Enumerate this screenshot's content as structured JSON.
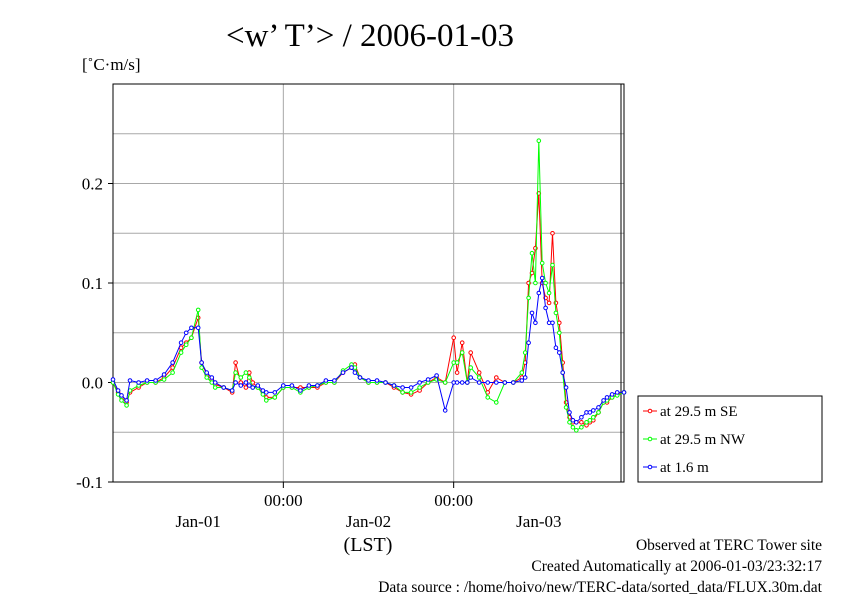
{
  "chart_data": {
    "type": "line",
    "title": "<w’ T’> / 2006-01-03",
    "ylabel": "[˚C·m/s]",
    "xlabel": "(LST)",
    "ylim": [
      -0.1,
      0.3
    ],
    "xlim": [
      0,
      3
    ],
    "grid": true,
    "legend_placement": "right",
    "y_ticks": [
      {
        "value": -0.1,
        "label": "-0.1"
      },
      {
        "value": 0.0,
        "label": "0.0"
      },
      {
        "value": 0.1,
        "label": "0.1"
      },
      {
        "value": 0.2,
        "label": "0.2"
      }
    ],
    "x_ticks": [
      {
        "value": 1.0,
        "label": "00:00"
      },
      {
        "value": 2.0,
        "label": "00:00"
      }
    ],
    "x_day_labels": [
      {
        "value": 0.5,
        "label": "Jan-01"
      },
      {
        "value": 1.5,
        "label": "Jan-02"
      },
      {
        "value": 2.5,
        "label": "Jan-03"
      }
    ],
    "series": [
      {
        "name": "at 29.5 m SE",
        "color": "#ff0000",
        "x": [
          0.0,
          0.03,
          0.05,
          0.08,
          0.1,
          0.15,
          0.2,
          0.25,
          0.3,
          0.35,
          0.4,
          0.43,
          0.46,
          0.5,
          0.52,
          0.55,
          0.58,
          0.6,
          0.65,
          0.7,
          0.72,
          0.75,
          0.78,
          0.8,
          0.82,
          0.85,
          0.88,
          0.9,
          0.95,
          1.0,
          1.05,
          1.1,
          1.15,
          1.2,
          1.25,
          1.3,
          1.35,
          1.4,
          1.42,
          1.45,
          1.5,
          1.55,
          1.6,
          1.65,
          1.7,
          1.75,
          1.8,
          1.85,
          1.9,
          1.95,
          2.0,
          2.02,
          2.05,
          2.08,
          2.1,
          2.15,
          2.2,
          2.25,
          2.3,
          2.35,
          2.4,
          2.42,
          2.44,
          2.46,
          2.48,
          2.5,
          2.52,
          2.54,
          2.56,
          2.58,
          2.6,
          2.62,
          2.64,
          2.66,
          2.68,
          2.7,
          2.72,
          2.75,
          2.78,
          2.8,
          2.82,
          2.85,
          2.88,
          2.9,
          2.93,
          2.96,
          3.0
        ],
        "values": [
          0.0,
          -0.01,
          -0.015,
          -0.02,
          -0.01,
          -0.005,
          0.0,
          0.0,
          0.005,
          0.015,
          0.035,
          0.04,
          0.045,
          0.065,
          0.02,
          0.008,
          0.003,
          -0.002,
          -0.005,
          -0.01,
          0.02,
          0.0,
          -0.005,
          0.01,
          0.0,
          -0.005,
          -0.01,
          -0.015,
          -0.015,
          -0.005,
          -0.005,
          -0.005,
          -0.005,
          -0.005,
          0.0,
          0.0,
          0.01,
          0.015,
          0.018,
          0.005,
          0.0,
          0.0,
          0.0,
          -0.005,
          -0.01,
          -0.012,
          -0.008,
          0.0,
          0.005,
          0.0,
          0.045,
          0.01,
          0.04,
          0.0,
          0.03,
          0.01,
          -0.01,
          0.005,
          0.0,
          0.0,
          0.005,
          0.02,
          0.1,
          0.11,
          0.135,
          0.19,
          0.1,
          0.085,
          0.08,
          0.15,
          0.08,
          0.06,
          0.02,
          -0.02,
          -0.035,
          -0.04,
          -0.04,
          -0.04,
          -0.043,
          -0.04,
          -0.038,
          -0.03,
          -0.02,
          -0.02,
          -0.015,
          -0.012,
          -0.01
        ]
      },
      {
        "name": "at 29.5 m NW",
        "color": "#00ff00",
        "x": [
          0.0,
          0.03,
          0.05,
          0.08,
          0.1,
          0.15,
          0.2,
          0.25,
          0.3,
          0.35,
          0.4,
          0.43,
          0.46,
          0.5,
          0.52,
          0.55,
          0.58,
          0.6,
          0.65,
          0.7,
          0.72,
          0.75,
          0.78,
          0.8,
          0.82,
          0.85,
          0.88,
          0.9,
          0.95,
          1.0,
          1.05,
          1.1,
          1.15,
          1.2,
          1.25,
          1.3,
          1.35,
          1.4,
          1.42,
          1.45,
          1.5,
          1.55,
          1.6,
          1.65,
          1.7,
          1.75,
          1.8,
          1.85,
          1.9,
          1.95,
          2.0,
          2.02,
          2.05,
          2.08,
          2.1,
          2.15,
          2.2,
          2.25,
          2.3,
          2.35,
          2.4,
          2.42,
          2.44,
          2.46,
          2.48,
          2.5,
          2.52,
          2.54,
          2.56,
          2.58,
          2.6,
          2.62,
          2.64,
          2.66,
          2.68,
          2.7,
          2.72,
          2.75,
          2.78,
          2.8,
          2.82,
          2.85,
          2.88,
          2.9,
          2.93,
          2.96,
          3.0
        ],
        "values": [
          0.0,
          -0.012,
          -0.018,
          -0.023,
          -0.008,
          -0.003,
          0.0,
          0.0,
          0.003,
          0.01,
          0.03,
          0.038,
          0.045,
          0.073,
          0.015,
          0.005,
          0.0,
          -0.005,
          -0.005,
          -0.008,
          0.01,
          0.005,
          0.01,
          0.005,
          -0.005,
          -0.005,
          -0.012,
          -0.018,
          -0.015,
          -0.005,
          -0.005,
          -0.01,
          -0.005,
          -0.003,
          0.0,
          0.0,
          0.012,
          0.018,
          0.015,
          0.005,
          0.0,
          0.0,
          0.0,
          -0.003,
          -0.01,
          -0.01,
          -0.005,
          0.0,
          0.003,
          0.0,
          0.02,
          0.02,
          0.03,
          0.0,
          0.015,
          0.005,
          -0.015,
          -0.02,
          0.0,
          0.0,
          0.01,
          0.03,
          0.085,
          0.13,
          0.1,
          0.243,
          0.12,
          0.1,
          0.09,
          0.118,
          0.07,
          0.05,
          0.01,
          -0.025,
          -0.04,
          -0.045,
          -0.048,
          -0.045,
          -0.04,
          -0.038,
          -0.035,
          -0.03,
          -0.02,
          -0.018,
          -0.015,
          -0.013,
          -0.01
        ]
      },
      {
        "name": "at 1.6 m",
        "color": "#0000ff",
        "x": [
          0.0,
          0.03,
          0.05,
          0.08,
          0.1,
          0.15,
          0.2,
          0.25,
          0.3,
          0.35,
          0.4,
          0.43,
          0.46,
          0.5,
          0.52,
          0.55,
          0.58,
          0.6,
          0.65,
          0.7,
          0.72,
          0.75,
          0.78,
          0.8,
          0.82,
          0.85,
          0.88,
          0.9,
          0.95,
          1.0,
          1.05,
          1.1,
          1.15,
          1.2,
          1.25,
          1.3,
          1.35,
          1.4,
          1.42,
          1.45,
          1.5,
          1.55,
          1.6,
          1.65,
          1.7,
          1.75,
          1.8,
          1.85,
          1.9,
          1.95,
          2.0,
          2.02,
          2.05,
          2.08,
          2.1,
          2.15,
          2.2,
          2.25,
          2.3,
          2.35,
          2.4,
          2.42,
          2.44,
          2.46,
          2.48,
          2.5,
          2.52,
          2.54,
          2.56,
          2.58,
          2.6,
          2.62,
          2.64,
          2.66,
          2.68,
          2.7,
          2.72,
          2.75,
          2.78,
          2.8,
          2.82,
          2.85,
          2.88,
          2.9,
          2.93,
          2.96,
          3.0
        ],
        "values": [
          0.003,
          -0.008,
          -0.013,
          -0.018,
          0.002,
          0.0,
          0.002,
          0.002,
          0.008,
          0.02,
          0.04,
          0.05,
          0.055,
          0.055,
          0.02,
          0.01,
          0.005,
          0.0,
          -0.005,
          -0.008,
          0.0,
          -0.003,
          0.0,
          -0.003,
          -0.005,
          -0.003,
          -0.008,
          -0.01,
          -0.01,
          -0.003,
          -0.003,
          -0.008,
          -0.003,
          -0.003,
          0.002,
          0.002,
          0.01,
          0.015,
          0.01,
          0.005,
          0.002,
          0.002,
          0.0,
          -0.003,
          -0.005,
          -0.005,
          0.0,
          0.003,
          0.007,
          -0.028,
          0.0,
          0.0,
          0.0,
          0.0,
          0.005,
          0.0,
          0.0,
          0.0,
          0.0,
          0.0,
          0.002,
          0.005,
          0.04,
          0.07,
          0.06,
          0.09,
          0.105,
          0.075,
          0.06,
          0.06,
          0.035,
          0.03,
          0.01,
          -0.005,
          -0.03,
          -0.038,
          -0.04,
          -0.035,
          -0.03,
          -0.03,
          -0.028,
          -0.025,
          -0.018,
          -0.015,
          -0.012,
          -0.01,
          -0.01
        ]
      }
    ]
  },
  "footer": {
    "observed": "Observed at TERC Tower site",
    "created": "Created Automatically at 2006-01-03/23:32:17",
    "source": "Data source : /home/hoivo/new/TERC-data/sorted_data/FLUX.30m.dat"
  }
}
